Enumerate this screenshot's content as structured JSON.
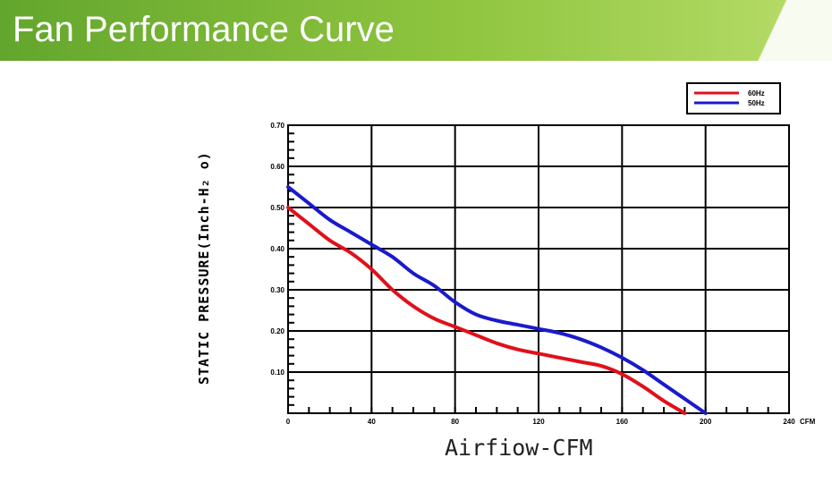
{
  "header": {
    "title": "Fan Performance Curve"
  },
  "colors": {
    "banner": "#7fbf3a",
    "series_60hz": "#e0101a",
    "series_50hz": "#1a1acc"
  },
  "chart_data": {
    "type": "line",
    "title": "",
    "xlabel": "Airfiow-CFM",
    "ylabel": "STATIC PRESSURE(Inch-H₂ o)",
    "x_unit": "CFM",
    "xlim": [
      0,
      240
    ],
    "ylim": [
      0,
      0.7
    ],
    "x_ticks": [
      "0",
      "40",
      "80",
      "120",
      "160",
      "200",
      "240"
    ],
    "y_ticks": [
      "0.10",
      "0.20",
      "0.30",
      "0.40",
      "0.50",
      "0.60",
      "0.70"
    ],
    "grid": true,
    "legend_position": "top-right",
    "series": [
      {
        "name": "60Hz",
        "color": "#e0101a",
        "x": [
          0,
          10,
          20,
          30,
          40,
          50,
          60,
          70,
          80,
          90,
          100,
          110,
          120,
          130,
          140,
          150,
          160,
          170,
          180,
          190
        ],
        "y": [
          0.5,
          0.46,
          0.42,
          0.39,
          0.35,
          0.3,
          0.26,
          0.23,
          0.21,
          0.19,
          0.17,
          0.155,
          0.145,
          0.135,
          0.125,
          0.115,
          0.095,
          0.065,
          0.03,
          0.0
        ]
      },
      {
        "name": "50Hz",
        "color": "#1a1acc",
        "x": [
          0,
          10,
          20,
          30,
          40,
          50,
          60,
          70,
          80,
          90,
          100,
          110,
          120,
          130,
          140,
          150,
          160,
          170,
          180,
          190,
          200
        ],
        "y": [
          0.55,
          0.51,
          0.47,
          0.44,
          0.41,
          0.38,
          0.34,
          0.31,
          0.27,
          0.24,
          0.225,
          0.215,
          0.205,
          0.195,
          0.18,
          0.16,
          0.135,
          0.105,
          0.07,
          0.035,
          0.0
        ]
      }
    ]
  }
}
